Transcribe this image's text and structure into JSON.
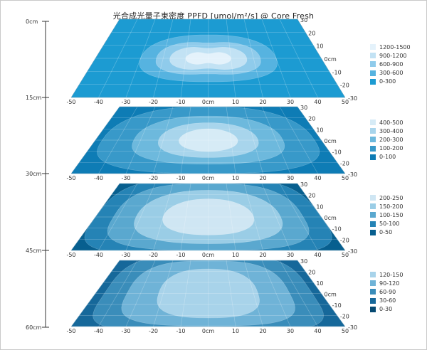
{
  "title": "光合成光量子束密度 PPFD [umol/m²/s] @ Core Fresh",
  "chart_data": {
    "type": "heatmap",
    "title": "光合成光量子束密度 PPFD [umol/m²/s] @ Core Fresh",
    "depth_axis": {
      "ticks": [
        "0cm",
        "15cm",
        "30cm",
        "45cm",
        "60cm"
      ]
    },
    "x_ticks": [
      "-50",
      "-40",
      "-30",
      "-20",
      "-10",
      "0cm",
      "10",
      "20",
      "30",
      "40",
      "50"
    ],
    "y_ticks": [
      "30",
      "20",
      "10",
      "0cm",
      "-10",
      "-20",
      "-30"
    ],
    "layers": [
      {
        "depth": "0cm",
        "legend": [
          {
            "label": "1200-1500",
            "color": "#e4f2fb"
          },
          {
            "label": "900-1200",
            "color": "#c2e2f4"
          },
          {
            "label": "600-900",
            "color": "#8fcbeb"
          },
          {
            "label": "300-600",
            "color": "#56b3e0"
          },
          {
            "label": "0-300",
            "color": "#1c9bd2"
          }
        ]
      },
      {
        "depth": "15cm",
        "legend": [
          {
            "label": "400-500",
            "color": "#d6ebf6"
          },
          {
            "label": "300-400",
            "color": "#a8d5ec"
          },
          {
            "label": "200-300",
            "color": "#6db9dd"
          },
          {
            "label": "100-200",
            "color": "#3899c9"
          },
          {
            "label": "0-100",
            "color": "#0e7cb5"
          }
        ]
      },
      {
        "depth": "30cm",
        "legend": [
          {
            "label": "200-250",
            "color": "#cfe6f3"
          },
          {
            "label": "150-200",
            "color": "#9acde6"
          },
          {
            "label": "100-150",
            "color": "#5aa8cf"
          },
          {
            "label": "50-100",
            "color": "#2583b5"
          },
          {
            "label": "0-50",
            "color": "#075f8f"
          }
        ]
      },
      {
        "depth": "45cm",
        "legend": [
          {
            "label": "120-150",
            "color": "#a8d3ea"
          },
          {
            "label": "90-120",
            "color": "#6fb3d7"
          },
          {
            "label": "60-90",
            "color": "#3a8dba"
          },
          {
            "label": "30-60",
            "color": "#16689a"
          },
          {
            "label": "0-30",
            "color": "#064a72"
          }
        ]
      }
    ]
  }
}
